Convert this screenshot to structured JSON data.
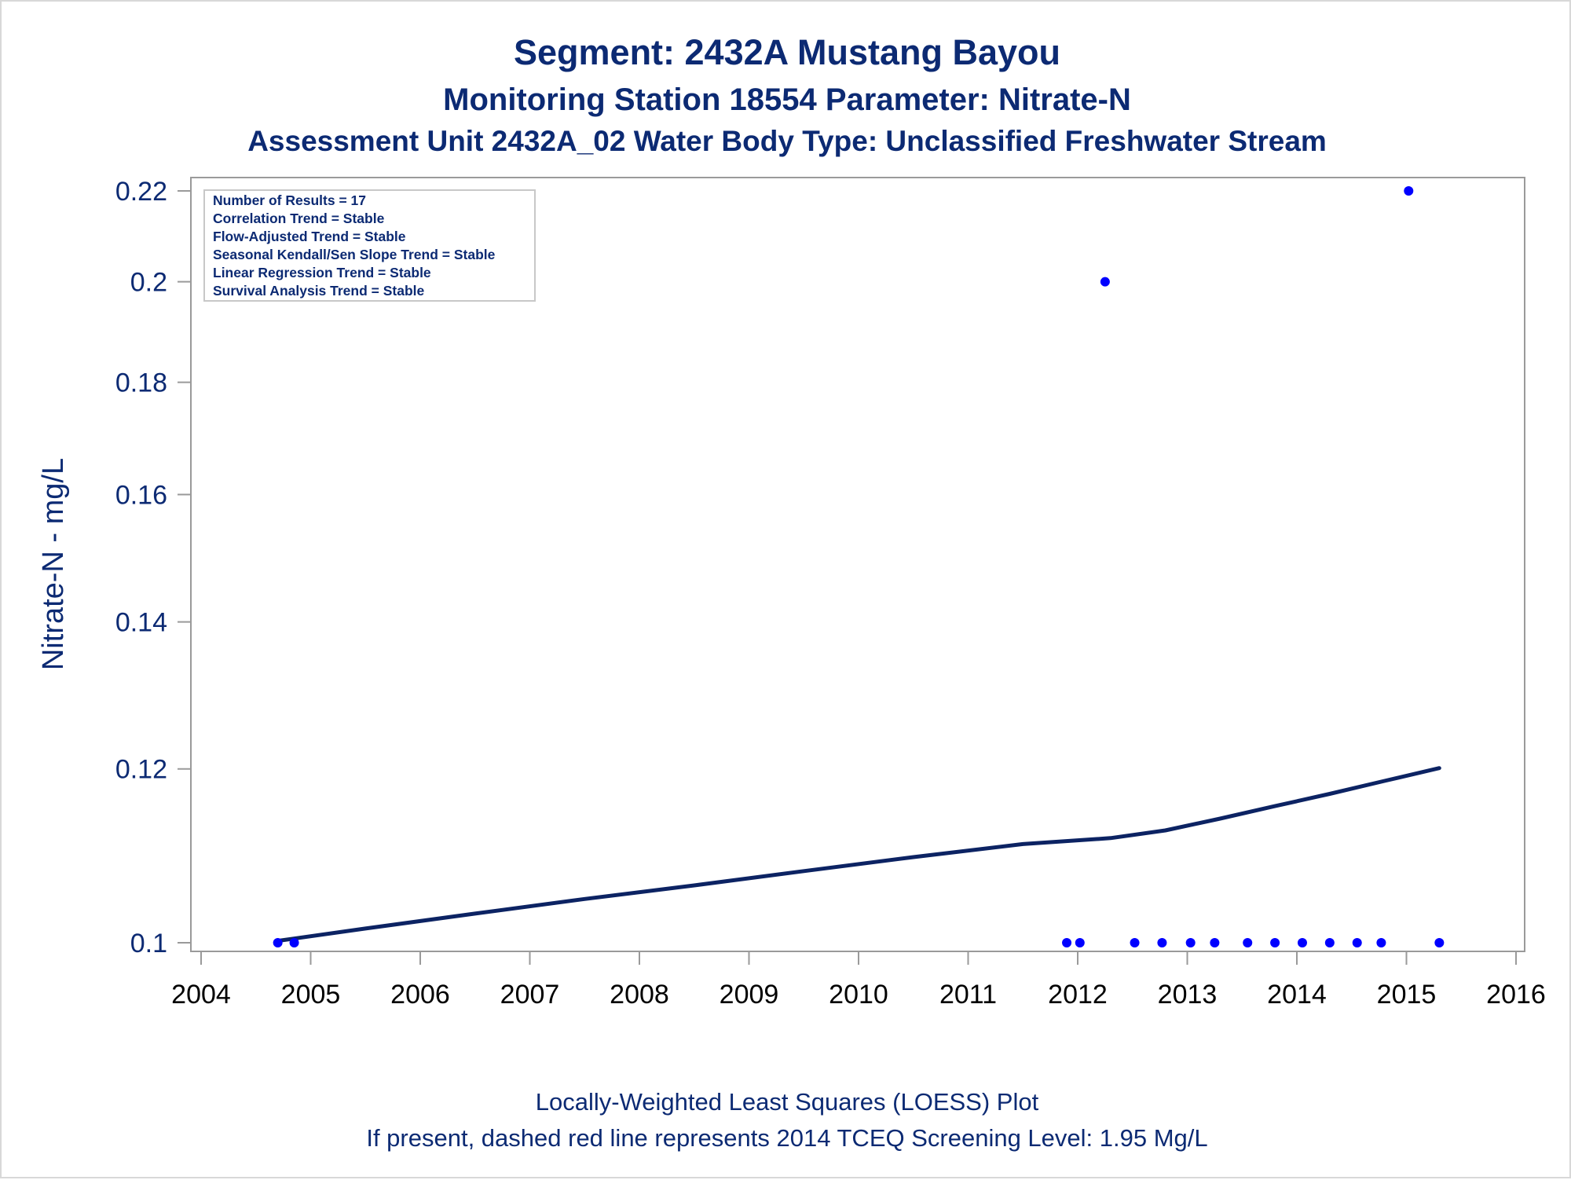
{
  "titles": {
    "line1": "Segment: 2432A  Mustang Bayou",
    "line2": "Monitoring Station 18554 Parameter: Nitrate-N",
    "line3": "Assessment Unit 2432A_02   Water Body Type: Unclassified Freshwater Stream"
  },
  "axes": {
    "ylabel": "Nitrate-N - mg/L",
    "yticks": [
      "0.1",
      "0.12",
      "0.14",
      "0.16",
      "0.18",
      "0.2",
      "0.22"
    ],
    "xticks": [
      "2004",
      "2005",
      "2006",
      "2007",
      "2008",
      "2009",
      "2010",
      "2011",
      "2012",
      "2013",
      "2014",
      "2015",
      "2016"
    ]
  },
  "inset": {
    "lines": [
      "Number of Results = 17",
      "Correlation Trend = Stable",
      "Flow-Adjusted Trend = Stable",
      "Seasonal Kendall/Sen Slope Trend = Stable",
      "Linear Regression Trend = Stable",
      "Survival Analysis Trend = Stable"
    ]
  },
  "footnotes": {
    "line1": "Locally-Weighted Least Squares (LOESS) Plot",
    "line2": "If present, dashed red line represents 2014 TCEQ Screening Level: 1.95 Mg/L"
  },
  "colors": {
    "text": "#0c2a73",
    "points": "#0000ff",
    "loess": "#0c2363",
    "axis": "#9a9a9a"
  },
  "chart_data": {
    "type": "scatter",
    "xlim": [
      2004,
      2016
    ],
    "ylim": [
      0.1,
      0.22
    ],
    "yscale": "log",
    "grid": false,
    "series": [
      {
        "kind": "points",
        "x": [
          2004.7,
          2004.85,
          2011.9,
          2012.02,
          2012.25,
          2012.52,
          2012.77,
          2013.03,
          2013.25,
          2013.55,
          2013.8,
          2014.05,
          2014.3,
          2014.55,
          2014.77,
          2015.02,
          2015.3
        ],
        "y": [
          0.1,
          0.1,
          0.1,
          0.1,
          0.2,
          0.1,
          0.1,
          0.1,
          0.1,
          0.1,
          0.1,
          0.1,
          0.1,
          0.1,
          0.1,
          0.22,
          0.1
        ]
      },
      {
        "kind": "loess",
        "x": [
          2004.7,
          2005.5,
          2006.5,
          2007.5,
          2008.5,
          2009.5,
          2010.5,
          2011.5,
          2012.3,
          2012.8,
          2013.3,
          2013.8,
          2014.3,
          2014.8,
          2015.3
        ],
        "y": [
          0.1002,
          0.1015,
          0.1031,
          0.1047,
          0.1062,
          0.1078,
          0.1094,
          0.1109,
          0.1116,
          0.1125,
          0.1139,
          0.1154,
          0.1169,
          0.1185,
          0.1201
        ]
      }
    ]
  }
}
